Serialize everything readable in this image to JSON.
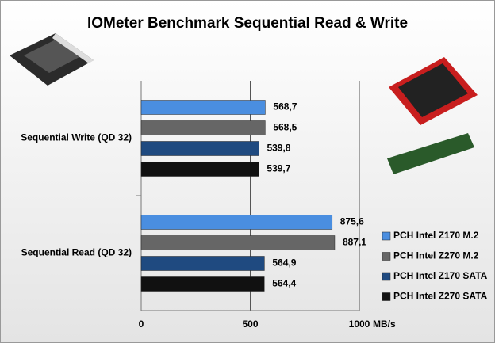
{
  "chart_data": {
    "type": "bar",
    "orientation": "horizontal",
    "title": "IOMeter Benchmark Sequential Read & Write",
    "x_label": "MB/s",
    "categories": [
      "Sequential Write (QD 32)",
      "Sequential Read (QD 32)"
    ],
    "series": [
      {
        "name": "PCH Intel Z170 M.2",
        "color": "#4a8ee0",
        "values": [
          568.7,
          875.6
        ],
        "value_labels": [
          "568,7",
          "875,6"
        ]
      },
      {
        "name": "PCH Intel Z270 M.2",
        "color": "#666666",
        "values": [
          568.5,
          887.1
        ],
        "value_labels": [
          "568,5",
          "887,1"
        ]
      },
      {
        "name": "PCH Intel Z170 SATA",
        "color": "#1f4a80",
        "values": [
          539.8,
          564.9
        ],
        "value_labels": [
          "539,8",
          "564,9"
        ]
      },
      {
        "name": "PCH Intel Z270 SATA",
        "color": "#111111",
        "values": [
          539.7,
          564.4
        ],
        "value_labels": [
          "539,7",
          "564,4"
        ]
      }
    ],
    "xlim": [
      0,
      1000
    ],
    "xticks": [
      0,
      500,
      1000
    ],
    "grid": true,
    "legend": "right"
  }
}
